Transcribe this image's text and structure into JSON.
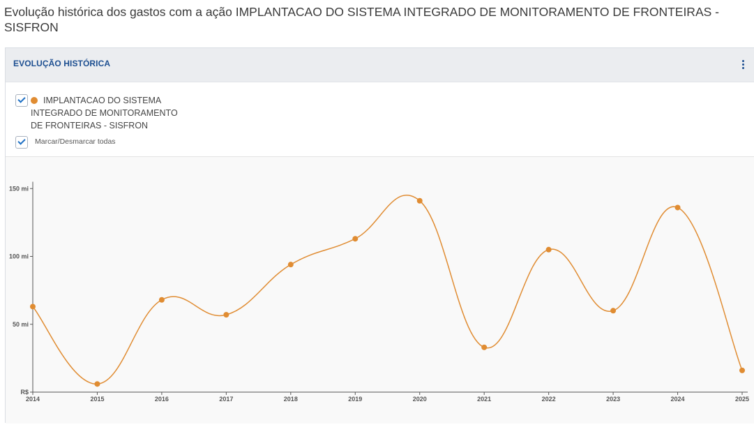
{
  "page": {
    "title": "Evolução histórica dos gastos com a ação IMPLANTACAO DO SISTEMA INTEGRADO DE MONITORAMENTO DE FRONTEIRAS - SISFRON"
  },
  "panel": {
    "title": "EVOLUÇÃO HISTÓRICA",
    "menu_icon": "vertical-ellipsis-icon",
    "series_label": "IMPLANTACAO DO SISTEMA INTEGRADO DE MONITORAMENTO DE FRONTEIRAS - SISFRON",
    "series_checked": true,
    "toggle_all_label": "Marcar/Desmarcar todas",
    "toggle_all_checked": true,
    "check_icon": "checkmark-icon"
  },
  "colors": {
    "series": "#e08c32",
    "accent": "#1d4f91",
    "check": "#1d6fc4"
  },
  "chart_data": {
    "type": "line",
    "x": [
      "2014",
      "2015",
      "2016",
      "2017",
      "2018",
      "2019",
      "2020",
      "2021",
      "2022",
      "2023",
      "2024",
      "2025"
    ],
    "series": [
      {
        "name": "IMPLANTACAO DO SISTEMA INTEGRADO DE MONITORAMENTO DE FRONTEIRAS - SISFRON",
        "values": [
          63,
          6,
          68,
          57,
          94,
          113,
          141,
          33,
          105,
          60,
          136,
          16
        ]
      }
    ],
    "ylim": [
      0,
      155
    ],
    "yticks": [
      {
        "value": 0,
        "label": "R$"
      },
      {
        "value": 50,
        "label": "50 mi"
      },
      {
        "value": 100,
        "label": "100 mi"
      },
      {
        "value": 150,
        "label": "150 mi"
      }
    ],
    "grid": false,
    "smooth": true
  }
}
